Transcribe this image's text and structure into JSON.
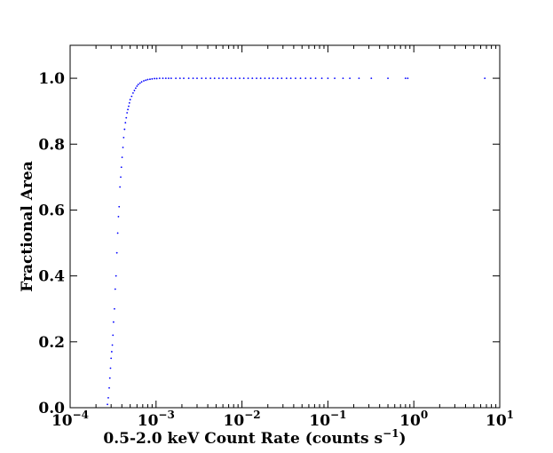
{
  "chart_data": {
    "type": "scatter",
    "title": "",
    "xlabel": "0.5-2.0 keV Count Rate (counts s",
    "xlabel_sup": "−1",
    "xlabel_end": ")",
    "ylabel": "Fractional Area",
    "xscale": "log",
    "xlim": [
      0.0001,
      10
    ],
    "ylim": [
      0.0,
      1.1
    ],
    "grid": false,
    "legend": "none",
    "marker_color": "#0000ff",
    "x_ticks": [
      {
        "value": 0.0001,
        "base": "10",
        "exp": "−4"
      },
      {
        "value": 0.001,
        "base": "10",
        "exp": "−3"
      },
      {
        "value": 0.01,
        "base": "10",
        "exp": "−2"
      },
      {
        "value": 0.1,
        "base": "10",
        "exp": "−1"
      },
      {
        "value": 1,
        "base": "10",
        "exp": "0"
      },
      {
        "value": 10,
        "base": "10",
        "exp": "1"
      }
    ],
    "y_ticks": [
      {
        "value": 0.0,
        "label": "0.0"
      },
      {
        "value": 0.2,
        "label": "0.2"
      },
      {
        "value": 0.4,
        "label": "0.4"
      },
      {
        "value": 0.6,
        "label": "0.6"
      },
      {
        "value": 0.8,
        "label": "0.8"
      },
      {
        "value": 1.0,
        "label": "1.0"
      }
    ],
    "series": [
      {
        "x": [
          0.000272,
          0.000278,
          0.000285,
          0.00029,
          0.000295,
          0.0003,
          0.000305,
          0.00031,
          0.000315,
          0.00032,
          0.000328,
          0.000335,
          0.000342,
          0.00035,
          0.000358,
          0.000365,
          0.000372,
          0.00038,
          0.000388,
          0.000395,
          0.000403,
          0.000412,
          0.00042,
          0.00043,
          0.00044,
          0.00045,
          0.00046,
          0.00047,
          0.00048,
          0.00049,
          0.0005,
          0.00052,
          0.00054,
          0.00056,
          0.00058,
          0.0006,
          0.00062,
          0.00065,
          0.00068,
          0.00072,
          0.00076,
          0.0008,
          0.00085,
          0.0009,
          0.00096,
          0.00102,
          0.0011,
          0.0012,
          0.0013,
          0.0014,
          0.0015,
          0.0017,
          0.0019,
          0.0021,
          0.0024,
          0.0027,
          0.003,
          0.0034,
          0.0038,
          0.0043,
          0.0048,
          0.0054,
          0.006,
          0.0067,
          0.0075,
          0.0084,
          0.0094,
          0.0105,
          0.0118,
          0.0132,
          0.0148,
          0.0165,
          0.0185,
          0.0207,
          0.023,
          0.026,
          0.029,
          0.033,
          0.037,
          0.042,
          0.048,
          0.055,
          0.063,
          0.072,
          0.085,
          0.1,
          0.12,
          0.15,
          0.18,
          0.23,
          0.32,
          0.5,
          0.8,
          0.85,
          6.7
        ],
        "y": [
          0.01,
          0.03,
          0.06,
          0.09,
          0.12,
          0.15,
          0.17,
          0.19,
          0.22,
          0.26,
          0.3,
          0.36,
          0.4,
          0.47,
          0.53,
          0.58,
          0.61,
          0.67,
          0.7,
          0.73,
          0.76,
          0.79,
          0.82,
          0.845,
          0.865,
          0.88,
          0.895,
          0.905,
          0.915,
          0.925,
          0.935,
          0.945,
          0.955,
          0.963,
          0.97,
          0.976,
          0.981,
          0.985,
          0.989,
          0.992,
          0.994,
          0.996,
          0.997,
          0.998,
          0.999,
          0.999,
          1.0,
          1.0,
          1.0,
          1.0,
          1.0,
          1.0,
          1.0,
          1.0,
          1.0,
          1.0,
          1.0,
          1.0,
          1.0,
          1.0,
          1.0,
          1.0,
          1.0,
          1.0,
          1.0,
          1.0,
          1.0,
          1.0,
          1.0,
          1.0,
          1.0,
          1.0,
          1.0,
          1.0,
          1.0,
          1.0,
          1.0,
          1.0,
          1.0,
          1.0,
          1.0,
          1.0,
          1.0,
          1.0,
          1.0,
          1.0,
          1.0,
          1.0,
          1.0,
          1.0,
          1.0,
          1.0,
          1.0,
          1.0,
          1.0
        ]
      }
    ]
  }
}
